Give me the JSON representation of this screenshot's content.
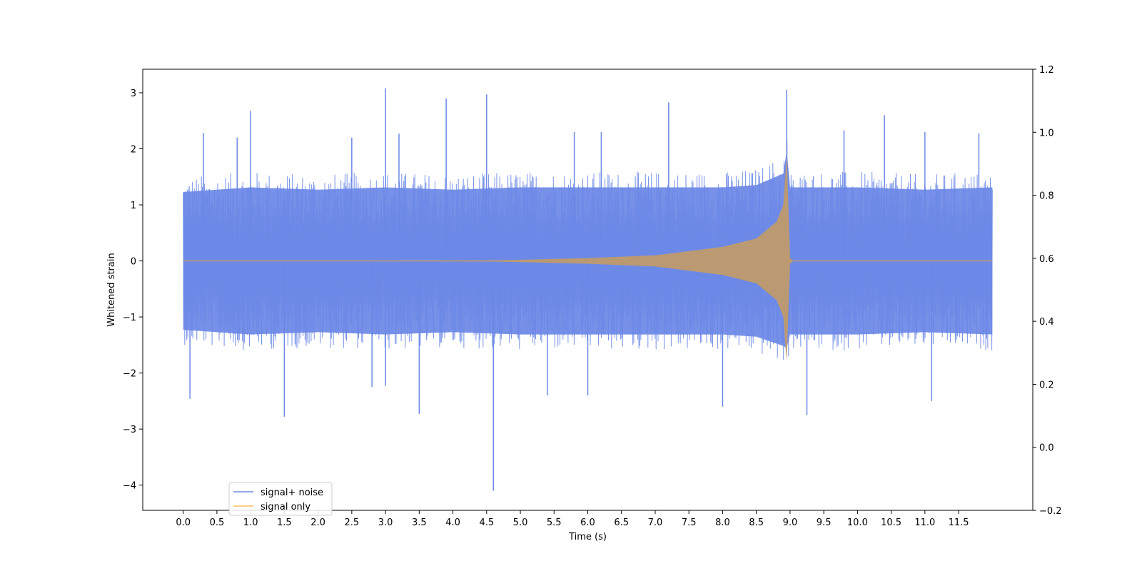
{
  "chart_data": {
    "type": "line",
    "title": "",
    "xlabel": "Time (s)",
    "ylabel": "Whitened strain",
    "y2label": "",
    "xlim": [
      -0.6,
      12.6
    ],
    "ylim": [
      -4.45,
      3.42
    ],
    "y2lim": [
      -0.2,
      1.2
    ],
    "x_ticks": [
      "0.0",
      "0.5",
      "1.0",
      "1.5",
      "2.0",
      "2.5",
      "3.0",
      "3.5",
      "4.0",
      "4.5",
      "5.0",
      "5.5",
      "6.0",
      "6.5",
      "7.0",
      "7.5",
      "8.0",
      "8.5",
      "9.0",
      "9.5",
      "10.0",
      "10.5",
      "11.0",
      "11.5"
    ],
    "y_ticks": [
      "3",
      "2",
      "1",
      "0",
      "−1",
      "−2",
      "−3",
      "−4"
    ],
    "y2_ticks": [
      "1.2",
      "1.0",
      "0.8",
      "0.6",
      "0.4",
      "0.2",
      "0.0",
      "−0.2"
    ],
    "grid": false,
    "legend_position": "lower-left",
    "series": [
      {
        "name": "signal+ noise",
        "color": "#6b88e6",
        "x_range": [
          0.0,
          12.0
        ],
        "envelope_upper": [
          [
            0.0,
            1.5
          ],
          [
            1.0,
            1.6
          ],
          [
            2.0,
            1.55
          ],
          [
            3.0,
            1.6
          ],
          [
            4.0,
            1.55
          ],
          [
            5.0,
            1.6
          ],
          [
            6.0,
            1.6
          ],
          [
            7.0,
            1.6
          ],
          [
            8.0,
            1.6
          ],
          [
            8.5,
            1.65
          ],
          [
            8.9,
            1.9
          ],
          [
            8.95,
            2.4
          ],
          [
            9.0,
            1.6
          ],
          [
            10.0,
            1.6
          ],
          [
            11.0,
            1.55
          ],
          [
            12.0,
            1.6
          ]
        ],
        "envelope_lower": [
          [
            0.0,
            -1.5
          ],
          [
            1.0,
            -1.6
          ],
          [
            2.0,
            -1.55
          ],
          [
            3.0,
            -1.6
          ],
          [
            4.0,
            -1.55
          ],
          [
            5.0,
            -1.6
          ],
          [
            6.0,
            -1.6
          ],
          [
            7.0,
            -1.6
          ],
          [
            8.0,
            -1.6
          ],
          [
            8.5,
            -1.65
          ],
          [
            8.9,
            -1.85
          ],
          [
            8.95,
            -1.9
          ],
          [
            9.0,
            -1.6
          ],
          [
            10.0,
            -1.6
          ],
          [
            11.0,
            -1.55
          ],
          [
            12.0,
            -1.6
          ]
        ],
        "peaks": [
          [
            0.1,
            -2.46
          ],
          [
            1.0,
            2.68
          ],
          [
            1.5,
            -2.78
          ],
          [
            3.0,
            3.08
          ],
          [
            3.5,
            -2.73
          ],
          [
            3.9,
            2.9
          ],
          [
            4.5,
            2.97
          ],
          [
            4.6,
            -4.1
          ],
          [
            7.2,
            2.83
          ],
          [
            8.0,
            -2.6
          ],
          [
            8.95,
            3.05
          ],
          [
            9.25,
            -2.75
          ],
          [
            11.1,
            -2.5
          ],
          [
            11.0,
            2.3
          ],
          [
            11.8,
            2.27
          ],
          [
            0.3,
            2.28
          ],
          [
            0.8,
            2.2
          ],
          [
            2.5,
            2.2
          ],
          [
            3.2,
            2.27
          ],
          [
            5.8,
            2.3
          ],
          [
            6.2,
            2.3
          ],
          [
            10.4,
            2.6
          ],
          [
            9.8,
            2.33
          ],
          [
            5.4,
            -2.4
          ],
          [
            6.0,
            -2.4
          ],
          [
            2.8,
            -2.25
          ],
          [
            3.0,
            -2.23
          ]
        ]
      },
      {
        "name": "signal only",
        "color": "#ffc060",
        "x_range": [
          0.0,
          12.0
        ],
        "envelope_upper": [
          [
            0.0,
            0.0
          ],
          [
            4.5,
            0.01
          ],
          [
            5.0,
            0.02
          ],
          [
            6.0,
            0.05
          ],
          [
            7.0,
            0.1
          ],
          [
            8.0,
            0.25
          ],
          [
            8.5,
            0.4
          ],
          [
            8.8,
            0.7
          ],
          [
            8.9,
            1.0
          ],
          [
            8.95,
            1.9
          ],
          [
            9.0,
            0.05
          ],
          [
            9.05,
            0.0
          ],
          [
            12.0,
            0.0
          ]
        ],
        "envelope_lower": [
          [
            0.0,
            0.0
          ],
          [
            4.5,
            -0.01
          ],
          [
            5.0,
            -0.02
          ],
          [
            6.0,
            -0.05
          ],
          [
            7.0,
            -0.1
          ],
          [
            8.0,
            -0.25
          ],
          [
            8.5,
            -0.4
          ],
          [
            8.8,
            -0.7
          ],
          [
            8.9,
            -1.0
          ],
          [
            8.95,
            -1.8
          ],
          [
            9.0,
            -0.05
          ],
          [
            9.05,
            0.0
          ],
          [
            12.0,
            0.0
          ]
        ]
      }
    ]
  }
}
